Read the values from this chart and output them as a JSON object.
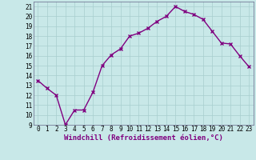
{
  "x": [
    0,
    1,
    2,
    3,
    4,
    5,
    6,
    7,
    8,
    9,
    10,
    11,
    12,
    13,
    14,
    15,
    16,
    17,
    18,
    19,
    20,
    21,
    22,
    23
  ],
  "y": [
    13.5,
    12.7,
    12.0,
    9.0,
    10.5,
    10.5,
    12.3,
    15.0,
    16.1,
    16.7,
    18.0,
    18.3,
    18.8,
    19.5,
    20.0,
    21.0,
    20.5,
    20.2,
    19.7,
    18.5,
    17.3,
    17.2,
    16.0,
    14.9
  ],
  "line_color": "#800080",
  "marker": "x",
  "marker_color": "#800080",
  "bg_color": "#c8e8e8",
  "grid_color": "#a8cece",
  "xlabel": "Windchill (Refroidissement éolien,°C)",
  "ylim": [
    9,
    21.5
  ],
  "xlim": [
    -0.5,
    23.5
  ],
  "yticks": [
    9,
    10,
    11,
    12,
    13,
    14,
    15,
    16,
    17,
    18,
    19,
    20,
    21
  ],
  "xticks": [
    0,
    1,
    2,
    3,
    4,
    5,
    6,
    7,
    8,
    9,
    10,
    11,
    12,
    13,
    14,
    15,
    16,
    17,
    18,
    19,
    20,
    21,
    22,
    23
  ],
  "tick_label_fontsize": 5.5,
  "xlabel_fontsize": 6.5,
  "line_width": 1.0,
  "marker_size": 3.5
}
